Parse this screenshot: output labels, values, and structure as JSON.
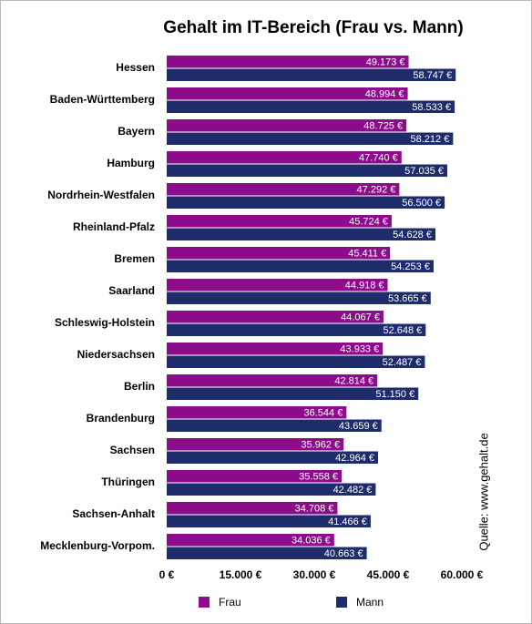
{
  "chart_data": {
    "type": "hbar",
    "title": "Gehalt im IT-Bereich (Frau vs. Mann)",
    "categories": [
      "Hessen",
      "Baden-Württemberg",
      "Bayern",
      "Hamburg",
      "Nordrhein-Westfalen",
      "Rheinland-Pfalz",
      "Bremen",
      "Saarland",
      "Schleswig-Holstein",
      "Niedersachsen",
      "Berlin",
      "Brandenburg",
      "Sachsen",
      "Thüringen",
      "Sachsen-Anhalt",
      "Mecklenburg-Vorpom."
    ],
    "series": [
      {
        "name": "Frau",
        "color": "#8c0c8c",
        "values": [
          49173,
          48994,
          48725,
          47740,
          47292,
          45724,
          45411,
          44918,
          44067,
          43933,
          42814,
          36544,
          35962,
          35558,
          34708,
          34036
        ],
        "value_labels": [
          "49.173 €",
          "48.994 €",
          "48.725 €",
          "47.740 €",
          "47.292 €",
          "45.724 €",
          "45.411 €",
          "44.918 €",
          "44.067 €",
          "43.933 €",
          "42.814 €",
          "36.544 €",
          "35.962 €",
          "35.558 €",
          "34.708 €",
          "34.036 €"
        ]
      },
      {
        "name": "Mann",
        "color": "#1f2c6b",
        "values": [
          58747,
          58533,
          58212,
          57035,
          56500,
          54628,
          54253,
          53665,
          52648,
          52487,
          51150,
          43659,
          42964,
          42482,
          41466,
          40663
        ],
        "value_labels": [
          "58.747 €",
          "58.533 €",
          "58.212 €",
          "57.035 €",
          "56.500 €",
          "54.628 €",
          "54.253 €",
          "53.665 €",
          "52.648 €",
          "52.487 €",
          "51.150 €",
          "43.659 €",
          "42.964 €",
          "42.482 €",
          "41.466 €",
          "40.663 €"
        ]
      }
    ],
    "xlim": [
      0,
      60000
    ],
    "xticks": [
      {
        "value": 0,
        "label": "0 €"
      },
      {
        "value": 15000,
        "label": "15.000 €"
      },
      {
        "value": 30000,
        "label": "30.000 €"
      },
      {
        "value": 45000,
        "label": "45.000 €"
      },
      {
        "value": 60000,
        "label": "60.000 €"
      }
    ],
    "grid": false,
    "source": "Quelle: www.gehalt.de"
  }
}
